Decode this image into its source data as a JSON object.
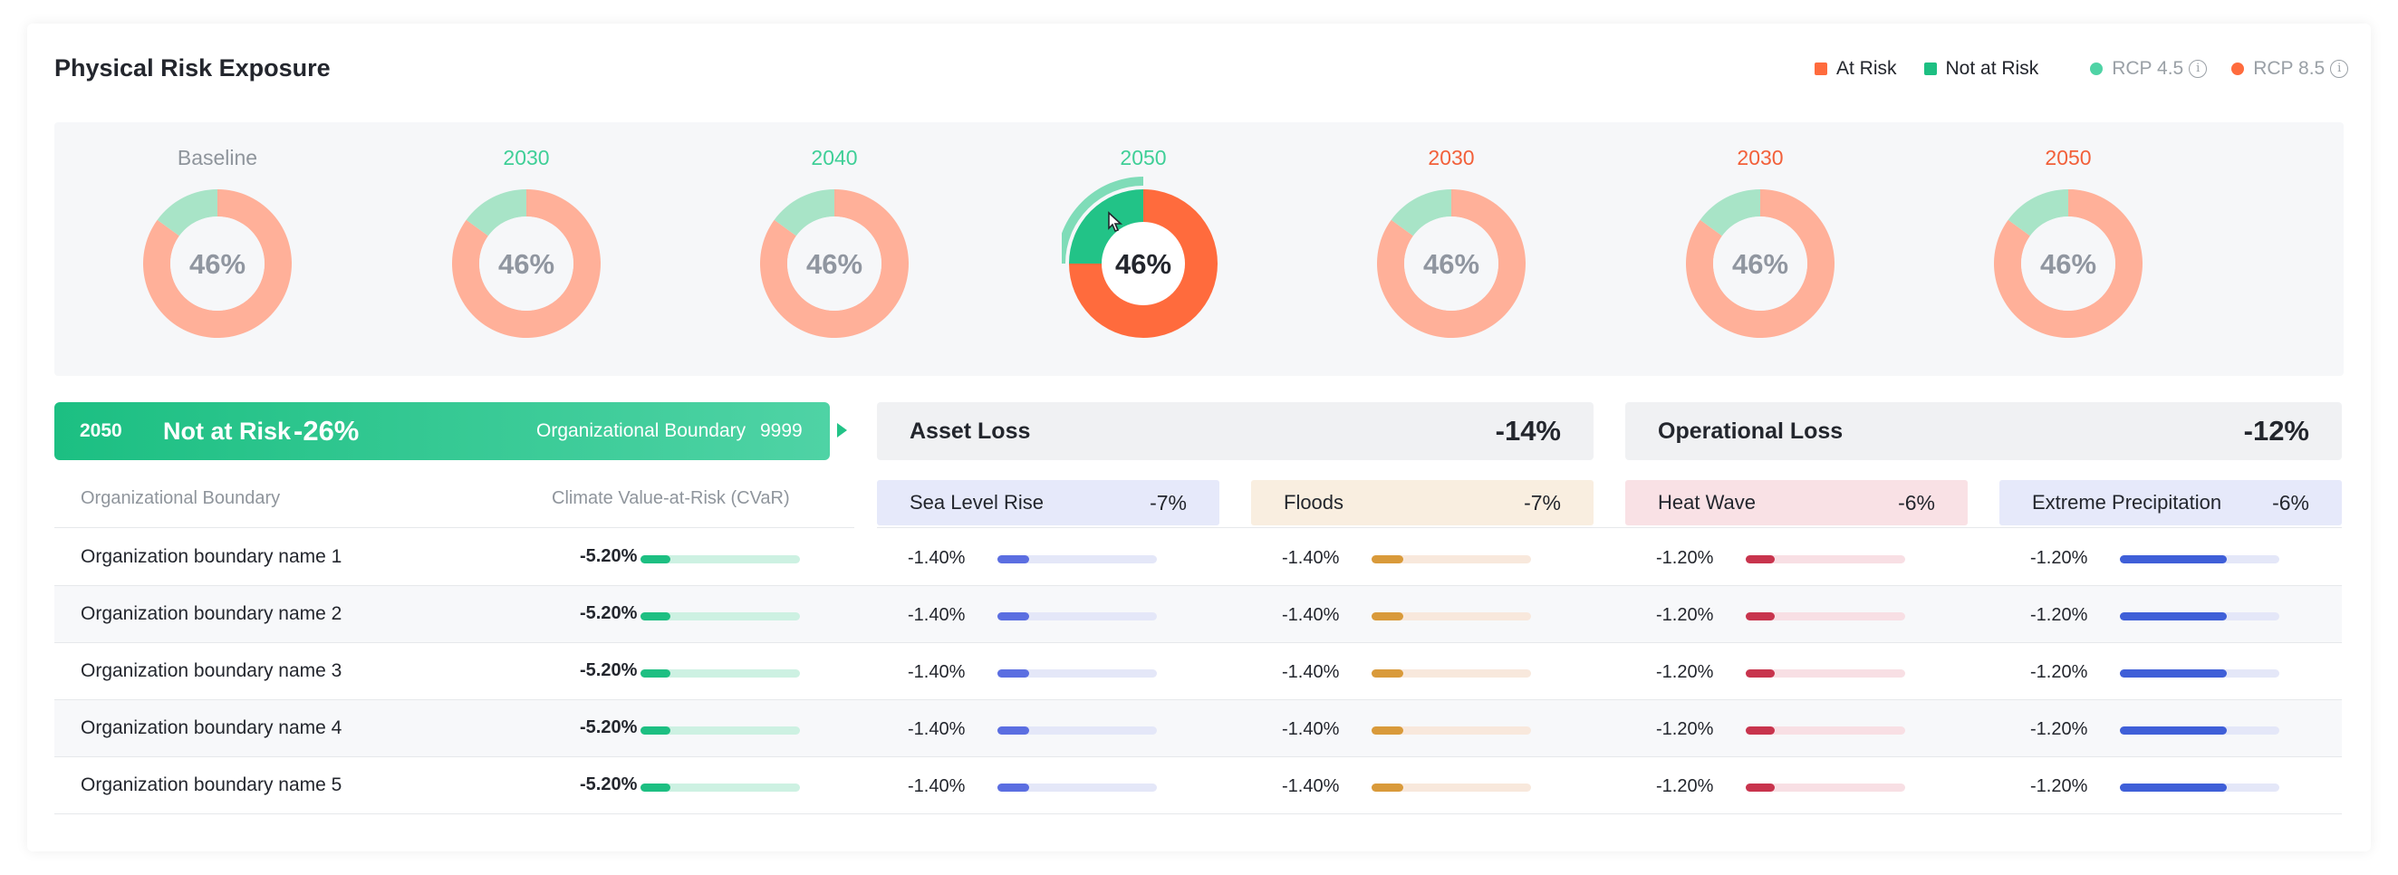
{
  "header": {
    "title": "Physical Risk Exposure"
  },
  "legend": {
    "at_risk": "At Risk",
    "not_at_risk": "Not at Risk",
    "rcp45": "RCP 4.5",
    "rcp85": "RCP 8.5"
  },
  "colors": {
    "at_risk": "#ff6b3d",
    "not_at_risk": "#1dbf82",
    "rcp45": "#4fd3a5",
    "rcp85": "#ff6b3d",
    "sea_level_rise": "#5b6ee1",
    "floods": "#d99a3a",
    "heat_wave": "#c8344d",
    "extreme_precipitation": "#3f5fd8"
  },
  "donuts": [
    {
      "year": "Baseline",
      "value": "46%",
      "not_at_risk_fraction": 0.15,
      "scenario": "baseline",
      "selected": false
    },
    {
      "year": "2030",
      "value": "46%",
      "not_at_risk_fraction": 0.15,
      "scenario": "rcp45",
      "selected": false
    },
    {
      "year": "2040",
      "value": "46%",
      "not_at_risk_fraction": 0.15,
      "scenario": "rcp45",
      "selected": false
    },
    {
      "year": "2050",
      "value": "46%",
      "not_at_risk_fraction": 0.25,
      "scenario": "rcp45",
      "selected": true
    },
    {
      "year": "2030",
      "value": "46%",
      "not_at_risk_fraction": 0.15,
      "scenario": "rcp85",
      "selected": false
    },
    {
      "year": "2030",
      "value": "46%",
      "not_at_risk_fraction": 0.15,
      "scenario": "rcp85",
      "selected": false
    },
    {
      "year": "2050",
      "value": "46%",
      "not_at_risk_fraction": 0.15,
      "scenario": "rcp85",
      "selected": false
    }
  ],
  "selection": {
    "year": "2050",
    "status": "Not at Risk",
    "change": "-26%",
    "boundary_label": "Organizational Boundary",
    "boundary_count": "9999"
  },
  "asset_loss": {
    "label": "Asset Loss",
    "value": "-14%"
  },
  "operational_loss": {
    "label": "Operational Loss",
    "value": "-12%"
  },
  "hazards": [
    {
      "label": "Sea Level Rise",
      "value": "-7%"
    },
    {
      "label": "Floods",
      "value": "-7%"
    },
    {
      "label": "Heat Wave",
      "value": "-6%"
    },
    {
      "label": "Extreme Precipitation",
      "value": "-6%"
    }
  ],
  "table": {
    "headers": {
      "boundary": "Organizational Boundary",
      "cvar": "Climate Value-at-Risk (CVaR)"
    },
    "rows": [
      {
        "name": "Organization boundary name 1",
        "cvar": "-5.20%",
        "cvar_fill": 0.19,
        "hazards": [
          "-1.40%",
          "-1.40%",
          "-1.20%",
          "-1.20%"
        ]
      },
      {
        "name": "Organization boundary name 2",
        "cvar": "-5.20%",
        "cvar_fill": 0.19,
        "hazards": [
          "-1.40%",
          "-1.40%",
          "-1.20%",
          "-1.20%"
        ]
      },
      {
        "name": "Organization boundary name 3",
        "cvar": "-5.20%",
        "cvar_fill": 0.19,
        "hazards": [
          "-1.40%",
          "-1.40%",
          "-1.20%",
          "-1.20%"
        ]
      },
      {
        "name": "Organization boundary name 4",
        "cvar": "-5.20%",
        "cvar_fill": 0.19,
        "hazards": [
          "-1.40%",
          "-1.40%",
          "-1.20%",
          "-1.20%"
        ]
      },
      {
        "name": "Organization boundary name 5",
        "cvar": "-5.20%",
        "cvar_fill": 0.19,
        "hazards": [
          "-1.40%",
          "-1.40%",
          "-1.20%",
          "-1.20%"
        ]
      }
    ],
    "hazard_fills": [
      0.2,
      0.2,
      0.18,
      0.67
    ]
  }
}
